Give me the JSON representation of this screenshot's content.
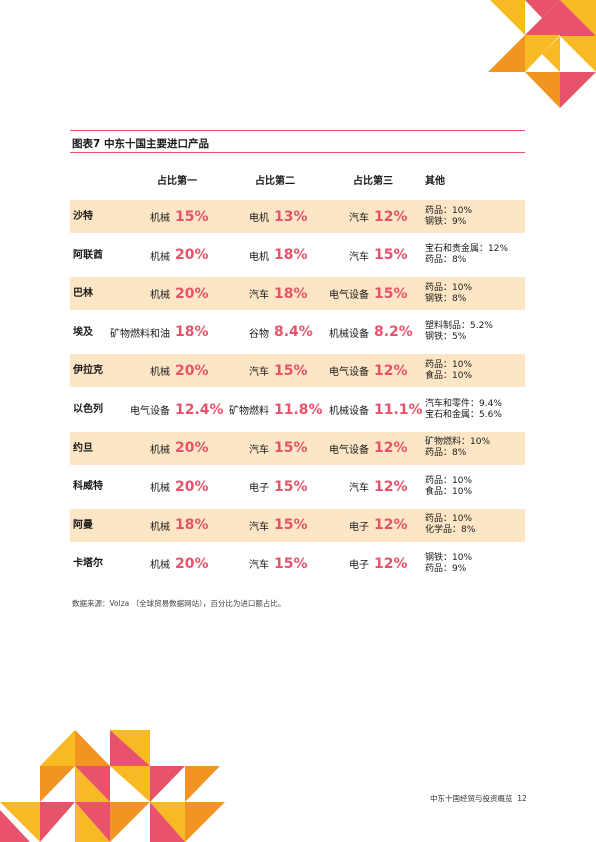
{
  "title": "图表7  中东十国主要进口产品",
  "headers": [
    "占比第一",
    "占比第二",
    "占比第三",
    "其他"
  ],
  "rows": [
    {
      "country": "沙特",
      "p1": {
        "label": "机械",
        "value": "15%"
      },
      "p2": {
        "label": "电机",
        "value": "13%"
      },
      "p3": {
        "label": "汽车",
        "value": "12%"
      },
      "other": [
        "药品：10%",
        "钢铁：9%"
      ]
    },
    {
      "country": "阿联酋",
      "p1": {
        "label": "机械",
        "value": "20%"
      },
      "p2": {
        "label": "电机",
        "value": "18%"
      },
      "p3": {
        "label": "汽车",
        "value": "15%"
      },
      "other": [
        "宝石和贵金属：12%",
        "药品：8%"
      ]
    },
    {
      "country": "巴林",
      "p1": {
        "label": "机械",
        "value": "20%"
      },
      "p2": {
        "label": "汽车",
        "value": "18%"
      },
      "p3": {
        "label": "电气设备",
        "value": "15%"
      },
      "other": [
        "药品：10%",
        "钢铁：8%"
      ]
    },
    {
      "country": "埃及",
      "p1": {
        "label": "矿物燃料和油",
        "value": "18%"
      },
      "p2": {
        "label": "谷物",
        "value": "8.4%"
      },
      "p3": {
        "label": "机械设备",
        "value": "8.2%"
      },
      "other": [
        "塑料制品：5.2%",
        "钢铁：5%"
      ]
    },
    {
      "country": "伊拉克",
      "p1": {
        "label": "机械",
        "value": "20%"
      },
      "p2": {
        "label": "汽车",
        "value": "15%"
      },
      "p3": {
        "label": "电气设备",
        "value": "12%"
      },
      "other": [
        "药品：10%",
        "食品：10%"
      ]
    },
    {
      "country": "以色列",
      "p1": {
        "label": "电气设备",
        "value": "12.4%"
      },
      "p2": {
        "label": "矿物燃料",
        "value": "11.8%"
      },
      "p3": {
        "label": "机械设备",
        "value": "11.1%"
      },
      "other": [
        "汽车和零件：9.4%",
        "宝石和金属：5.6%"
      ]
    },
    {
      "country": "约旦",
      "p1": {
        "label": "机械",
        "value": "20%"
      },
      "p2": {
        "label": "汽车",
        "value": "15%"
      },
      "p3": {
        "label": "电气设备",
        "value": "12%"
      },
      "other": [
        "矿物燃料：10%",
        "药品：8%"
      ]
    },
    {
      "country": "科威特",
      "p1": {
        "label": "机械",
        "value": "20%"
      },
      "p2": {
        "label": "电子",
        "value": "15%"
      },
      "p3": {
        "label": "汽车",
        "value": "12%"
      },
      "other": [
        "药品：10%",
        "食品：10%"
      ]
    },
    {
      "country": "阿曼",
      "p1": {
        "label": "机械",
        "value": "18%"
      },
      "p2": {
        "label": "汽车",
        "value": "15%"
      },
      "p3": {
        "label": "电子",
        "value": "12%"
      },
      "other": [
        "药品：10%",
        "化学品：8%"
      ]
    },
    {
      "country": "卡塔尔",
      "p1": {
        "label": "机械",
        "value": "20%"
      },
      "p2": {
        "label": "汽车",
        "value": "15%"
      },
      "p3": {
        "label": "电子",
        "value": "12%"
      },
      "other": [
        "钢铁：10%",
        "药品：9%"
      ]
    }
  ],
  "source": "数据来源：Volza （全球贸易数据网站），百分比为进口额占比。",
  "footer": {
    "text": "中东十国经贸与投资概览",
    "page": "12"
  },
  "colors": {
    "accent_pink": "#e8536b",
    "row_shade": "#fde6c6",
    "yellow": "#f7b924",
    "orange": "#f29421"
  }
}
